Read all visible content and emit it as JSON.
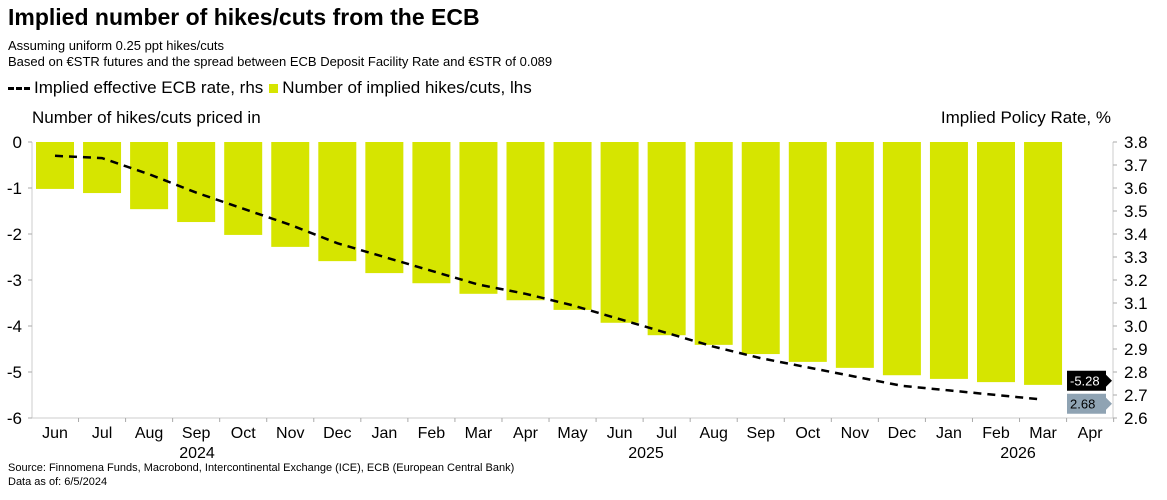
{
  "chart_data": {
    "type": "bar",
    "title": "Implied number of hikes/cuts from the ECB",
    "subtitles": [
      "Assuming uniform 0.25 ppt hikes/cuts",
      "Based on €STR futures and the spread between ECB Deposit Facility Rate and €STR of 0.089"
    ],
    "ylabel": "Number of hikes/cuts priced in",
    "y2label": "Implied Policy Rate, %",
    "ylim": [
      -6,
      0
    ],
    "y2lim": [
      2.6,
      3.8
    ],
    "yticks": [
      "0",
      "-1",
      "-2",
      "-3",
      "-4",
      "-5",
      "-6"
    ],
    "y2ticks": [
      "3.8",
      "3.7",
      "3.6",
      "3.5",
      "3.4",
      "3.3",
      "3.2",
      "3.1",
      "3.0",
      "2.9",
      "2.8",
      "2.7",
      "2.6"
    ],
    "xticks": [
      "Jun",
      "Jul",
      "Aug",
      "Sep",
      "Oct",
      "Nov",
      "Dec",
      "Jan",
      "Feb",
      "Mar",
      "Apr",
      "May",
      "Jun",
      "Jul",
      "Aug",
      "Sep",
      "Oct",
      "Nov",
      "Dec",
      "Jan",
      "Feb",
      "Mar",
      "Apr"
    ],
    "year_labels": [
      "2024",
      "2025",
      "2026"
    ],
    "categories": [
      "Jun 2024",
      "Jul 2024",
      "Aug 2024",
      "Sep 2024",
      "Oct 2024",
      "Nov 2024",
      "Dec 2024",
      "Jan 2025",
      "Feb 2025",
      "Mar 2025",
      "Apr 2025",
      "May 2025",
      "Jun 2025",
      "Jul 2025",
      "Aug 2025",
      "Sep 2025",
      "Oct 2025",
      "Nov 2025",
      "Dec 2025",
      "Jan 2026",
      "Feb 2026",
      "Mar 2026"
    ],
    "series": [
      {
        "name": "Number of implied hikes/cuts, lhs",
        "type": "bar",
        "axis": "left",
        "color": "#d6e500",
        "values": [
          -1.02,
          -1.11,
          -1.46,
          -1.74,
          -2.02,
          -2.28,
          -2.59,
          -2.85,
          -3.07,
          -3.3,
          -3.44,
          -3.65,
          -3.93,
          -4.2,
          -4.41,
          -4.61,
          -4.78,
          -4.91,
          -5.07,
          -5.15,
          -5.22,
          -5.28
        ]
      },
      {
        "name": "Implied effective ECB rate, rhs",
        "type": "line",
        "axis": "right",
        "color": "#000000",
        "dash": true,
        "values": [
          3.74,
          3.73,
          3.66,
          3.58,
          3.51,
          3.44,
          3.36,
          3.3,
          3.24,
          3.18,
          3.14,
          3.09,
          3.03,
          2.97,
          2.91,
          2.86,
          2.82,
          2.78,
          2.74,
          2.72,
          2.7,
          2.68
        ]
      }
    ],
    "end_labels": [
      {
        "text": "-5.28",
        "color": "#000000"
      },
      {
        "text": "2.68",
        "color": "#8fa3b3"
      }
    ],
    "legend": "top-left",
    "grid": false
  },
  "footer": {
    "source": "Source: Finnomena Funds, Macrobond, Intercontinental Exchange (ICE), ECB (European Central Bank)",
    "as_of": "Data as of: 6/5/2024"
  }
}
